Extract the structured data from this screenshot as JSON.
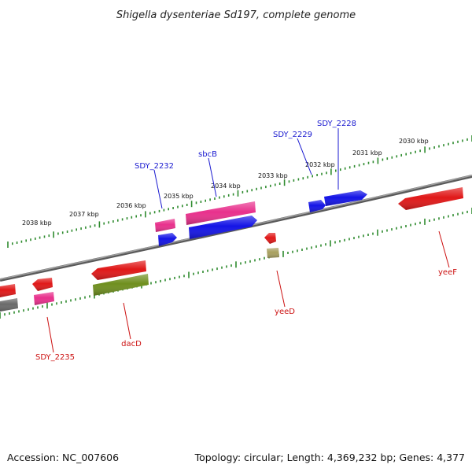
{
  "title": "Shigella dysenteriae Sd197, complete genome",
  "footer": {
    "accession": "Accession: NC_007606",
    "topology": "Topology: circular; Length: 4,369,232 bp; Genes: 4,377"
  },
  "scale": {
    "unit": "kbp",
    "tick_labels": [
      "2030 kbp",
      "2031 kbp",
      "2032 kbp",
      "2033 kbp",
      "2034 kbp",
      "2035 kbp",
      "2036 kbp",
      "2037 kbp",
      "2038 kbp"
    ]
  },
  "colors": {
    "backbone": "#7a7a7a",
    "tick": "#2e8b2e",
    "label_forward": "#1a1ad0",
    "label_reverse": "#cc1111",
    "red": "#e01818",
    "pink": "#e8308c",
    "blue": "#1414e6",
    "olive": "#6f8f1f",
    "khaki": "#a8a060",
    "gray": "#6a6a6a"
  },
  "genes": [
    {
      "name": "SDY_2228",
      "strand": "forward"
    },
    {
      "name": "SDY_2229",
      "strand": "forward"
    },
    {
      "name": "sbcB",
      "strand": "forward"
    },
    {
      "name": "SDY_2232",
      "strand": "forward"
    },
    {
      "name": "yeeF",
      "strand": "reverse"
    },
    {
      "name": "yeeD",
      "strand": "reverse"
    },
    {
      "name": "dacD",
      "strand": "reverse"
    },
    {
      "name": "SDY_2235",
      "strand": "reverse"
    }
  ]
}
